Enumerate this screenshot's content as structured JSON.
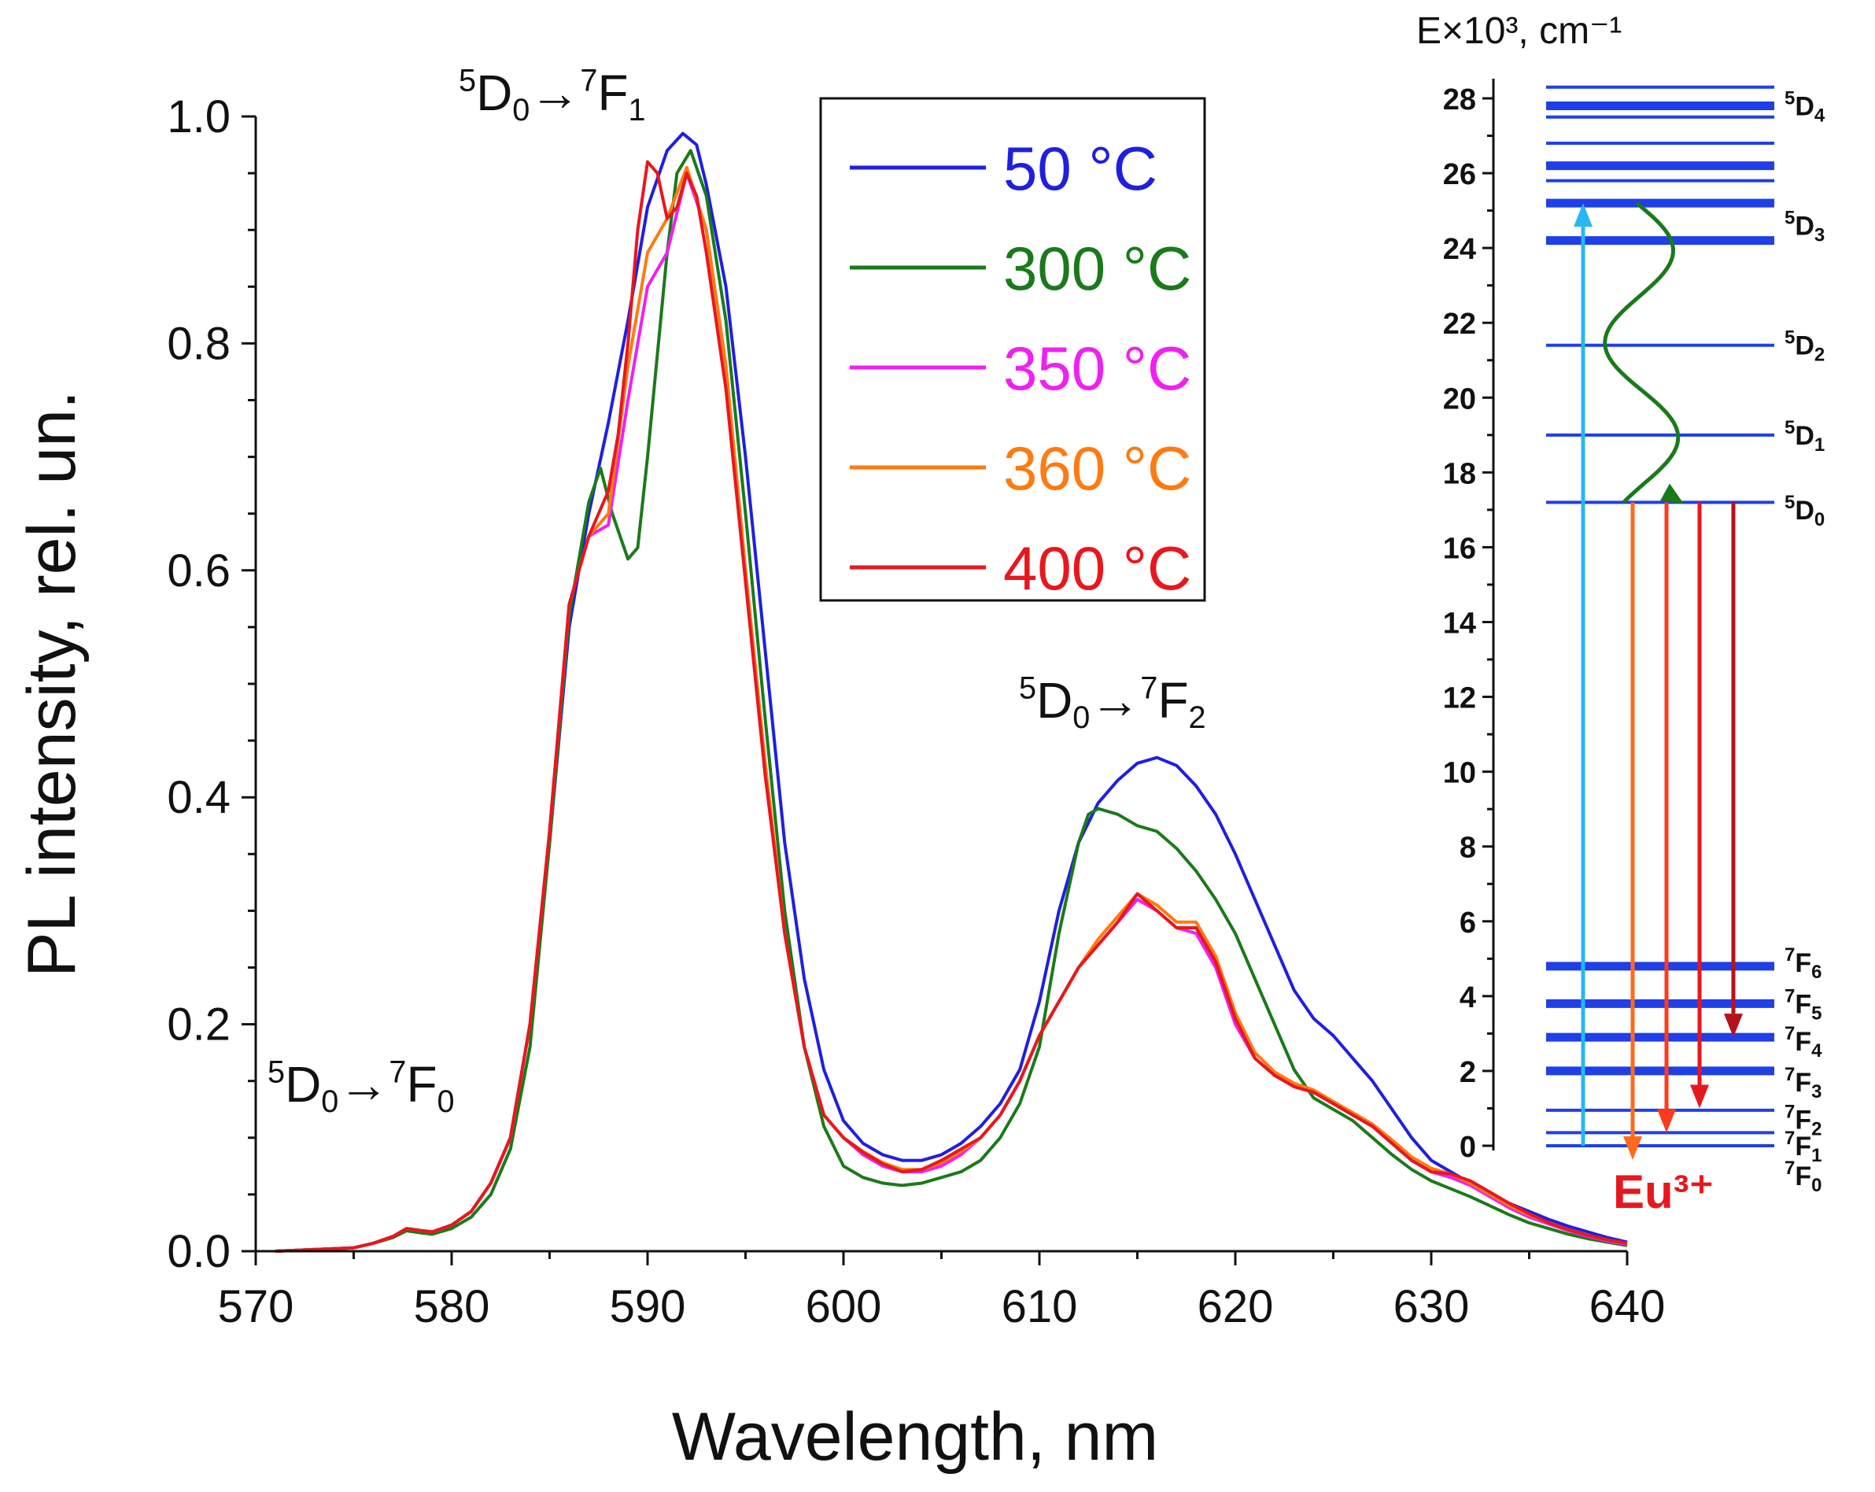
{
  "chart_data": [
    {
      "type": "line",
      "xlabel": "Wavelength, nm",
      "ylabel": "PL intensity, rel. un.",
      "xlim": [
        570,
        640
      ],
      "ylim": [
        0,
        1.0
      ],
      "x_ticks": [
        "570",
        "580",
        "590",
        "600",
        "610",
        "620",
        "630",
        "640"
      ],
      "y_ticks": [
        "0.0",
        "0.2",
        "0.4",
        "0.6",
        "0.8",
        "1.0"
      ],
      "grid": false,
      "legend_position": "top-center",
      "annotations": [
        {
          "text": "5D0→7F1",
          "x": 589,
          "y": 1.02
        },
        {
          "text": "5D0→7F2",
          "x": 616,
          "y": 0.47
        },
        {
          "text": "5D0→7F0",
          "x": 576,
          "y": 0.15
        }
      ],
      "series": [
        {
          "name": "50 °C",
          "color": "#1f1fe0",
          "x": [
            571,
            575,
            576,
            577,
            577.7,
            578.5,
            579,
            580,
            581,
            582,
            583,
            584,
            585,
            586,
            587,
            588,
            589,
            590,
            591,
            591.8,
            592.5,
            593,
            594,
            595,
            596,
            597,
            598,
            599,
            600,
            601,
            602,
            603,
            604,
            605,
            606,
            607,
            608,
            609,
            610,
            611,
            612,
            613,
            614,
            615,
            616,
            617,
            618,
            619,
            620,
            621,
            622,
            623,
            624,
            625,
            626,
            627,
            628,
            629,
            630,
            631,
            632,
            633,
            634,
            635,
            636,
            637,
            638,
            639,
            640
          ],
          "y": [
            0,
            0.003,
            0.007,
            0.013,
            0.02,
            0.018,
            0.017,
            0.023,
            0.035,
            0.06,
            0.1,
            0.2,
            0.36,
            0.55,
            0.65,
            0.73,
            0.82,
            0.92,
            0.97,
            0.985,
            0.975,
            0.94,
            0.85,
            0.7,
            0.53,
            0.36,
            0.24,
            0.16,
            0.115,
            0.095,
            0.085,
            0.08,
            0.08,
            0.085,
            0.095,
            0.11,
            0.13,
            0.16,
            0.22,
            0.3,
            0.36,
            0.395,
            0.415,
            0.43,
            0.435,
            0.428,
            0.41,
            0.385,
            0.35,
            0.31,
            0.27,
            0.23,
            0.205,
            0.19,
            0.17,
            0.15,
            0.125,
            0.1,
            0.08,
            0.07,
            0.06,
            0.05,
            0.042,
            0.035,
            0.028,
            0.022,
            0.017,
            0.012,
            0.008
          ]
        },
        {
          "name": "300 °C",
          "color": "#1a7a1a",
          "x": [
            571,
            575,
            576,
            577,
            577.7,
            578.5,
            579,
            580,
            581,
            582,
            583,
            584,
            585,
            586,
            587,
            587.6,
            588.2,
            589,
            589.5,
            590,
            591,
            591.5,
            592.2,
            593,
            594,
            595,
            596,
            597,
            598,
            599,
            600,
            601,
            602,
            603,
            604,
            605,
            606,
            607,
            608,
            609,
            610,
            611,
            612,
            612.5,
            613,
            614,
            615,
            616,
            617,
            618,
            619,
            620,
            621,
            622,
            623,
            624,
            625,
            626,
            627,
            628,
            629,
            630,
            631,
            632,
            633,
            634,
            635,
            636,
            637,
            638,
            639,
            640
          ],
          "y": [
            0,
            0.003,
            0.007,
            0.012,
            0.018,
            0.016,
            0.015,
            0.02,
            0.03,
            0.05,
            0.09,
            0.18,
            0.36,
            0.56,
            0.66,
            0.69,
            0.65,
            0.61,
            0.62,
            0.7,
            0.88,
            0.95,
            0.97,
            0.93,
            0.82,
            0.65,
            0.47,
            0.3,
            0.18,
            0.11,
            0.075,
            0.065,
            0.06,
            0.058,
            0.06,
            0.065,
            0.07,
            0.08,
            0.1,
            0.13,
            0.18,
            0.28,
            0.36,
            0.385,
            0.39,
            0.385,
            0.375,
            0.37,
            0.355,
            0.335,
            0.31,
            0.28,
            0.24,
            0.2,
            0.16,
            0.135,
            0.125,
            0.115,
            0.1,
            0.085,
            0.072,
            0.062,
            0.055,
            0.048,
            0.04,
            0.032,
            0.025,
            0.02,
            0.015,
            0.011,
            0.008,
            0.005
          ]
        },
        {
          "name": "350 °C",
          "color": "#f020f0",
          "x": [
            571,
            575,
            576,
            577,
            577.7,
            578.5,
            579,
            580,
            581,
            582,
            583,
            584,
            585,
            586,
            587,
            588,
            589,
            590,
            591,
            592,
            593,
            594,
            595,
            596,
            597,
            598,
            599,
            600,
            601,
            602,
            603,
            604,
            605,
            606,
            607,
            608,
            609,
            610,
            611,
            612,
            613,
            614,
            615,
            616,
            617,
            618,
            619,
            620,
            621,
            622,
            623,
            624,
            625,
            626,
            627,
            628,
            629,
            630,
            631,
            632,
            633,
            634,
            635,
            636,
            637,
            638,
            639,
            640
          ],
          "y": [
            0,
            0.003,
            0.007,
            0.013,
            0.02,
            0.018,
            0.017,
            0.023,
            0.035,
            0.06,
            0.1,
            0.2,
            0.37,
            0.57,
            0.63,
            0.64,
            0.75,
            0.85,
            0.88,
            0.95,
            0.9,
            0.78,
            0.6,
            0.43,
            0.28,
            0.18,
            0.12,
            0.1,
            0.085,
            0.075,
            0.07,
            0.07,
            0.075,
            0.085,
            0.1,
            0.12,
            0.15,
            0.19,
            0.22,
            0.25,
            0.27,
            0.29,
            0.31,
            0.3,
            0.285,
            0.28,
            0.25,
            0.2,
            0.17,
            0.155,
            0.145,
            0.14,
            0.13,
            0.12,
            0.11,
            0.095,
            0.08,
            0.07,
            0.065,
            0.058,
            0.048,
            0.038,
            0.03,
            0.024,
            0.018,
            0.013,
            0.009,
            0.006
          ]
        },
        {
          "name": "360 °C",
          "color": "#ff7a10",
          "x": [
            571,
            575,
            576,
            577,
            577.7,
            578.5,
            579,
            580,
            581,
            582,
            583,
            584,
            585,
            586,
            587,
            588,
            589,
            590,
            591,
            592,
            593,
            594,
            595,
            596,
            597,
            598,
            599,
            600,
            601,
            602,
            603,
            604,
            605,
            606,
            607,
            608,
            609,
            610,
            611,
            612,
            613,
            614,
            615,
            616,
            617,
            618,
            619,
            620,
            621,
            622,
            623,
            624,
            625,
            626,
            627,
            628,
            629,
            630,
            631,
            632,
            633,
            634,
            635,
            636,
            637,
            638,
            639,
            640
          ],
          "y": [
            0,
            0.003,
            0.007,
            0.013,
            0.02,
            0.018,
            0.017,
            0.023,
            0.035,
            0.06,
            0.1,
            0.2,
            0.37,
            0.57,
            0.63,
            0.65,
            0.78,
            0.88,
            0.91,
            0.955,
            0.9,
            0.78,
            0.6,
            0.43,
            0.28,
            0.18,
            0.12,
            0.1,
            0.088,
            0.078,
            0.072,
            0.072,
            0.078,
            0.088,
            0.1,
            0.12,
            0.15,
            0.19,
            0.22,
            0.25,
            0.275,
            0.295,
            0.315,
            0.305,
            0.29,
            0.29,
            0.26,
            0.21,
            0.175,
            0.158,
            0.148,
            0.142,
            0.132,
            0.122,
            0.112,
            0.098,
            0.083,
            0.073,
            0.068,
            0.06,
            0.05,
            0.04,
            0.032,
            0.025,
            0.019,
            0.014,
            0.01,
            0.007
          ]
        },
        {
          "name": "400 °C",
          "color": "#e8171d",
          "x": [
            571,
            575,
            576,
            577,
            577.7,
            578.5,
            579,
            580,
            581,
            582,
            583,
            584,
            585,
            586,
            587,
            588,
            588.5,
            589,
            589.5,
            590,
            590.5,
            591,
            591.5,
            592,
            592.5,
            593,
            594,
            595,
            596,
            597,
            598,
            599,
            600,
            601,
            602,
            603,
            604,
            605,
            606,
            607,
            608,
            609,
            610,
            611,
            612,
            613,
            614,
            615,
            616,
            617,
            618,
            619,
            620,
            621,
            622,
            623,
            624,
            625,
            626,
            627,
            628,
            629,
            630,
            631,
            632,
            633,
            634,
            635,
            636,
            637,
            638,
            639,
            640
          ],
          "y": [
            0,
            0.003,
            0.007,
            0.013,
            0.02,
            0.018,
            0.017,
            0.023,
            0.035,
            0.06,
            0.1,
            0.2,
            0.37,
            0.57,
            0.63,
            0.67,
            0.72,
            0.8,
            0.9,
            0.96,
            0.95,
            0.91,
            0.92,
            0.95,
            0.93,
            0.88,
            0.76,
            0.59,
            0.42,
            0.28,
            0.18,
            0.12,
            0.1,
            0.087,
            0.077,
            0.07,
            0.072,
            0.08,
            0.09,
            0.1,
            0.12,
            0.15,
            0.19,
            0.22,
            0.25,
            0.27,
            0.29,
            0.315,
            0.3,
            0.285,
            0.285,
            0.255,
            0.205,
            0.17,
            0.155,
            0.145,
            0.14,
            0.13,
            0.12,
            0.11,
            0.095,
            0.08,
            0.07,
            0.068,
            0.062,
            0.052,
            0.042,
            0.033,
            0.025,
            0.019,
            0.014,
            0.01,
            0.007
          ]
        }
      ]
    },
    {
      "type": "diagram",
      "ylabel": "E×10³, cm⁻¹",
      "ylim": [
        0,
        29
      ],
      "y_ticks": [
        "0",
        "2",
        "4",
        "6",
        "8",
        "10",
        "12",
        "14",
        "16",
        "18",
        "20",
        "22",
        "24",
        "26",
        "28"
      ],
      "ion_label": "Eu³⁺",
      "levels": [
        {
          "energy": 28.3,
          "thick": false
        },
        {
          "energy": 27.8,
          "thick": true
        },
        {
          "energy": 27.5,
          "thick": false
        },
        {
          "energy": 26.8,
          "thick": false
        },
        {
          "energy": 26.2,
          "thick": true
        },
        {
          "energy": 25.8,
          "thick": false
        },
        {
          "energy": 25.2,
          "thick": true
        },
        {
          "energy": 24.2,
          "thick": true
        },
        {
          "energy": 21.4,
          "thick": false
        },
        {
          "energy": 19.0,
          "thick": false
        },
        {
          "energy": 17.2,
          "thick": false
        },
        {
          "energy": 4.8,
          "thick": true
        },
        {
          "energy": 3.8,
          "thick": true
        },
        {
          "energy": 2.9,
          "thick": true
        },
        {
          "energy": 2.0,
          "thick": true
        },
        {
          "energy": 0.95,
          "thick": false
        },
        {
          "energy": 0.35,
          "thick": false
        },
        {
          "energy": 0.0,
          "thick": false
        }
      ],
      "level_names": [
        {
          "label": "5D4",
          "sup": "5",
          "base": "D",
          "sub": "4",
          "energy": 27.8
        },
        {
          "label": "5D3",
          "sup": "5",
          "base": "D",
          "sub": "3",
          "energy": 24.6
        },
        {
          "label": "5D2",
          "sup": "5",
          "base": "D",
          "sub": "2",
          "energy": 21.4
        },
        {
          "label": "5D1",
          "sup": "5",
          "base": "D",
          "sub": "1",
          "energy": 19.0
        },
        {
          "label": "5D0",
          "sup": "5",
          "base": "D",
          "sub": "0",
          "energy": 17.0
        },
        {
          "label": "7F6",
          "sup": "7",
          "base": "F",
          "sub": "6",
          "energy": 4.9
        },
        {
          "label": "7F5",
          "sup": "7",
          "base": "F",
          "sub": "5",
          "energy": 3.8
        },
        {
          "label": "7F4",
          "sup": "7",
          "base": "F",
          "sub": "4",
          "energy": 2.8
        },
        {
          "label": "7F3",
          "sup": "7",
          "base": "F",
          "sub": "3",
          "energy": 1.7
        },
        {
          "label": "7F2",
          "sup": "7",
          "base": "F",
          "sub": "2",
          "energy": 0.7
        },
        {
          "label": "7F1",
          "sup": "7",
          "base": "F",
          "sub": "1",
          "energy": 0.0
        },
        {
          "label": "7F0",
          "sup": "7",
          "base": "F",
          "sub": "0",
          "energy": -0.8
        }
      ],
      "excitation": {
        "from": 0.0,
        "to": 25.2,
        "color": "#29b6f6"
      },
      "relaxation": {
        "from": 25.2,
        "to": 17.2,
        "color": "#1a7a1a"
      },
      "emissions": [
        {
          "from": 17.2,
          "to": 0.0,
          "color": "#ff6a1a"
        },
        {
          "from": 17.2,
          "to": 0.35,
          "color": "#ff3a1a"
        },
        {
          "from": 17.2,
          "to": 1.0,
          "color": "#e8171d"
        },
        {
          "from": 17.2,
          "to": 2.9,
          "color": "#b5121b"
        }
      ]
    }
  ]
}
